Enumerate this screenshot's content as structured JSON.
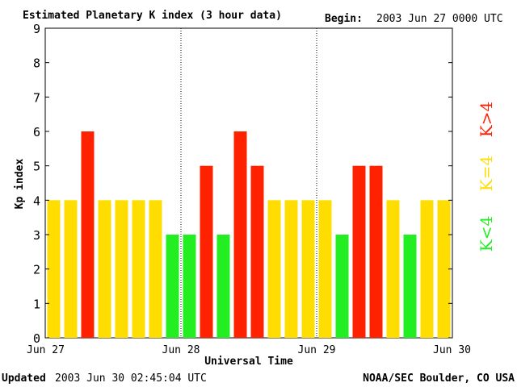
{
  "header": {
    "title": "Estimated Planetary K index (3 hour data)",
    "begin_label": "Begin:",
    "begin_value": "2003 Jun 27 0000 UTC"
  },
  "footer": {
    "updated_label": "Updated",
    "updated_value": "2003 Jun 30 02:45:04 UTC",
    "source": "NOAA/SEC Boulder, CO USA"
  },
  "legend": {
    "low": "K<4",
    "mid": "K=4",
    "high": "K>4"
  },
  "colors": {
    "low": "#22ee22",
    "mid": "#ffdd00",
    "high": "#ff2200"
  },
  "chart_data": {
    "type": "bar",
    "title": "Estimated Planetary K index (3 hour data)",
    "xlabel": "Universal Time",
    "ylabel": "Kp index",
    "ylim": [
      0,
      9
    ],
    "yticks": [
      0,
      1,
      2,
      3,
      4,
      5,
      6,
      7,
      8,
      9
    ],
    "day_labels": [
      "Jun 27",
      "Jun 28",
      "Jun 29",
      "Jun 30"
    ],
    "values": [
      4,
      4,
      6,
      4,
      4,
      4,
      4,
      3,
      3,
      5,
      3,
      6,
      5,
      4,
      4,
      4,
      4,
      3,
      5,
      5,
      4,
      3,
      4,
      4
    ],
    "color_rule": "green if K<4, yellow if K=4, red if K>4",
    "grid": false
  }
}
